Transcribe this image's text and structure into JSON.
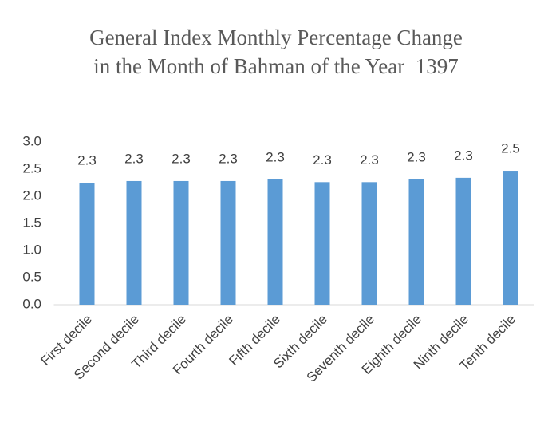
{
  "chart_data": {
    "type": "bar",
    "title": "General Index Monthly Percentage Change in the Month of Bahman of the Year  1397",
    "categories": [
      "First decile",
      "Second decile",
      "Third decile",
      "Fourth decile",
      "Fifth decile",
      "Sixth decile",
      "Seventh decile",
      "Eighth decile",
      "Ninth decile",
      "Tenth decile"
    ],
    "values": [
      2.25,
      2.28,
      2.28,
      2.28,
      2.31,
      2.26,
      2.26,
      2.31,
      2.34,
      2.47
    ],
    "value_labels": [
      "2.3",
      "2.3",
      "2.3",
      "2.3",
      "2.3",
      "2.3",
      "2.3",
      "2.3",
      "2.3",
      "2.5"
    ],
    "color": "#5b9bd5",
    "ylim": [
      0,
      3
    ],
    "yticks": [
      {
        "value": 0,
        "label": "0.0"
      },
      0.5,
      {
        "value": 1,
        "label": "1.0"
      },
      1.5,
      {
        "value": 2,
        "label": "2.0"
      },
      2.5,
      {
        "value": 3,
        "label": "3.0"
      }
    ],
    "grid": false
  }
}
